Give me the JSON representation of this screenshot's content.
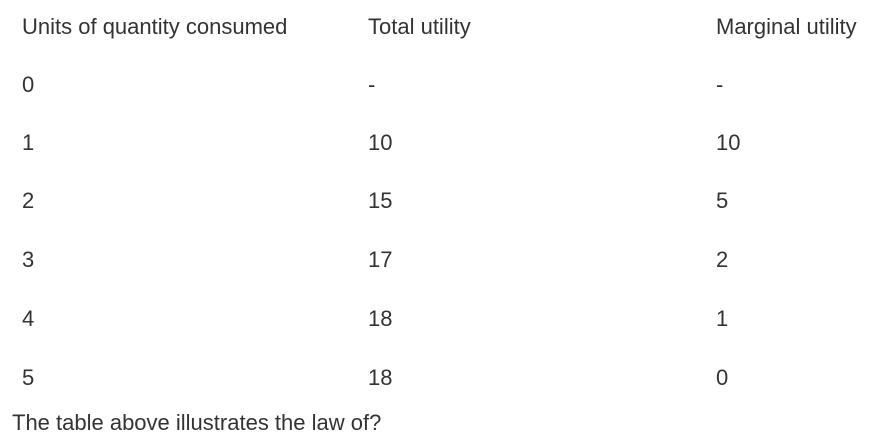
{
  "table": {
    "headers": [
      "Units of quantity consumed",
      "Total utility",
      "Marginal utility"
    ],
    "rows": [
      [
        "0",
        "-",
        "-"
      ],
      [
        "1",
        "10",
        "10"
      ],
      [
        "2",
        "15",
        "5"
      ],
      [
        "3",
        "17",
        "2"
      ],
      [
        "4",
        "18",
        "1"
      ],
      [
        "5",
        "18",
        "0"
      ]
    ]
  },
  "question": "The table above illustrates the law of?"
}
